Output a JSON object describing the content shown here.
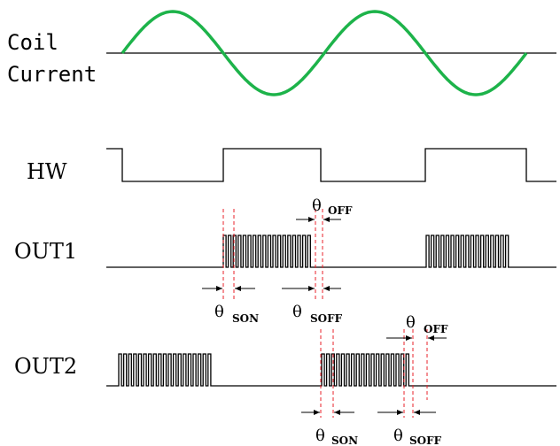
{
  "labels": {
    "coil_current": [
      "Coil",
      "Current"
    ],
    "hw": "HW",
    "out1": "OUT1",
    "out2": "OUT2"
  },
  "annotations": {
    "theta": "θ",
    "off": "OFF",
    "son": "SON",
    "soff": "SOFF"
  },
  "colors": {
    "sine": "#1db34a",
    "guides": "#e8222a",
    "lines": "#000000"
  }
}
